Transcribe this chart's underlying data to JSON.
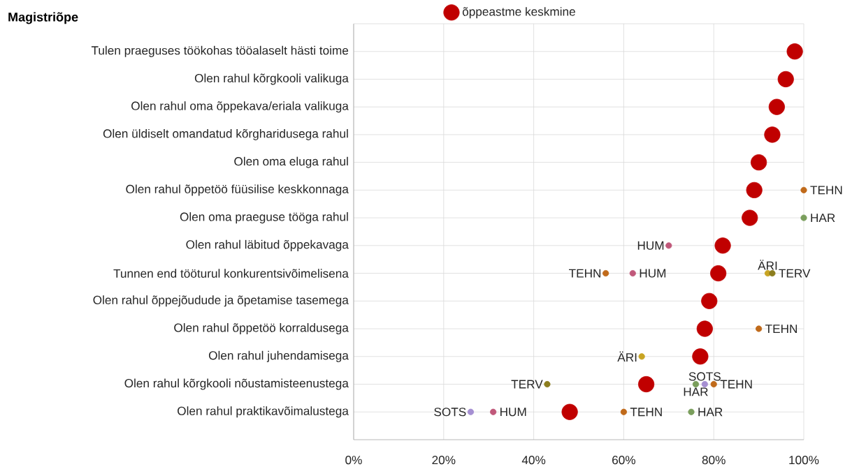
{
  "chart_data": {
    "type": "scatter",
    "orientation": "horizontal",
    "title": "Magistriõpe",
    "categories": [
      "Tulen praeguses töökohas tööalaselt hästi toime",
      "Olen rahul kõrgkooli valikuga",
      "Olen rahul oma õppekava/eriala valikuga",
      "Olen üldiselt omandatud kõrgharidusega rahul",
      "Olen oma eluga rahul",
      "Olen rahul õppetöö füüsilise keskkonnaga",
      "Olen oma praeguse tööga rahul",
      "Olen rahul läbitud õppekavaga",
      "Tunnen end tööturul konkurentsivõimelisena",
      "Olen rahul õppejõudude ja õpetamise tasemega",
      "Olen rahul õppetöö korraldusega",
      "Olen rahul juhendamisega",
      "Olen rahul kõrgkooli nõustamisteenustega",
      "Olen rahul praktikavõimalustega"
    ],
    "series": [
      {
        "name": "õppeastme keskmine",
        "color": "#c00000",
        "values": [
          98,
          96,
          94,
          93,
          90,
          89,
          88,
          82,
          81,
          79,
          78,
          77,
          65,
          48
        ]
      },
      {
        "name": "TEHN",
        "color": "#c06a1a",
        "values": [
          null,
          null,
          null,
          null,
          null,
          100,
          null,
          null,
          56,
          null,
          90,
          null,
          80,
          60
        ]
      },
      {
        "name": "HAR",
        "color": "#7a9e5c",
        "values": [
          null,
          null,
          null,
          null,
          null,
          null,
          100,
          null,
          null,
          null,
          null,
          null,
          76,
          75
        ]
      },
      {
        "name": "HUM",
        "color": "#c0587a",
        "values": [
          null,
          null,
          null,
          null,
          null,
          null,
          null,
          70,
          62,
          null,
          null,
          null,
          null,
          31
        ]
      },
      {
        "name": "ÄRI",
        "color": "#c8a423",
        "values": [
          null,
          null,
          null,
          null,
          null,
          null,
          null,
          null,
          92,
          null,
          null,
          64,
          null,
          null
        ]
      },
      {
        "name": "TERV",
        "color": "#8c7d1e",
        "values": [
          null,
          null,
          null,
          null,
          null,
          null,
          null,
          null,
          93,
          null,
          null,
          null,
          43,
          null
        ]
      },
      {
        "name": "SOTS",
        "color": "#a58fd2",
        "values": [
          null,
          null,
          null,
          null,
          null,
          null,
          null,
          null,
          null,
          null,
          null,
          null,
          78,
          26
        ]
      }
    ],
    "xlim": [
      0,
      100
    ],
    "xticks": [
      {
        "value": 0,
        "label": "0%"
      },
      {
        "value": 20,
        "label": "20%"
      },
      {
        "value": 40,
        "label": "40%"
      },
      {
        "value": 60,
        "label": "60%"
      },
      {
        "value": 80,
        "label": "80%"
      },
      {
        "value": 100,
        "label": "100%"
      }
    ],
    "grid": true,
    "legend": "top",
    "marker": "circle"
  }
}
